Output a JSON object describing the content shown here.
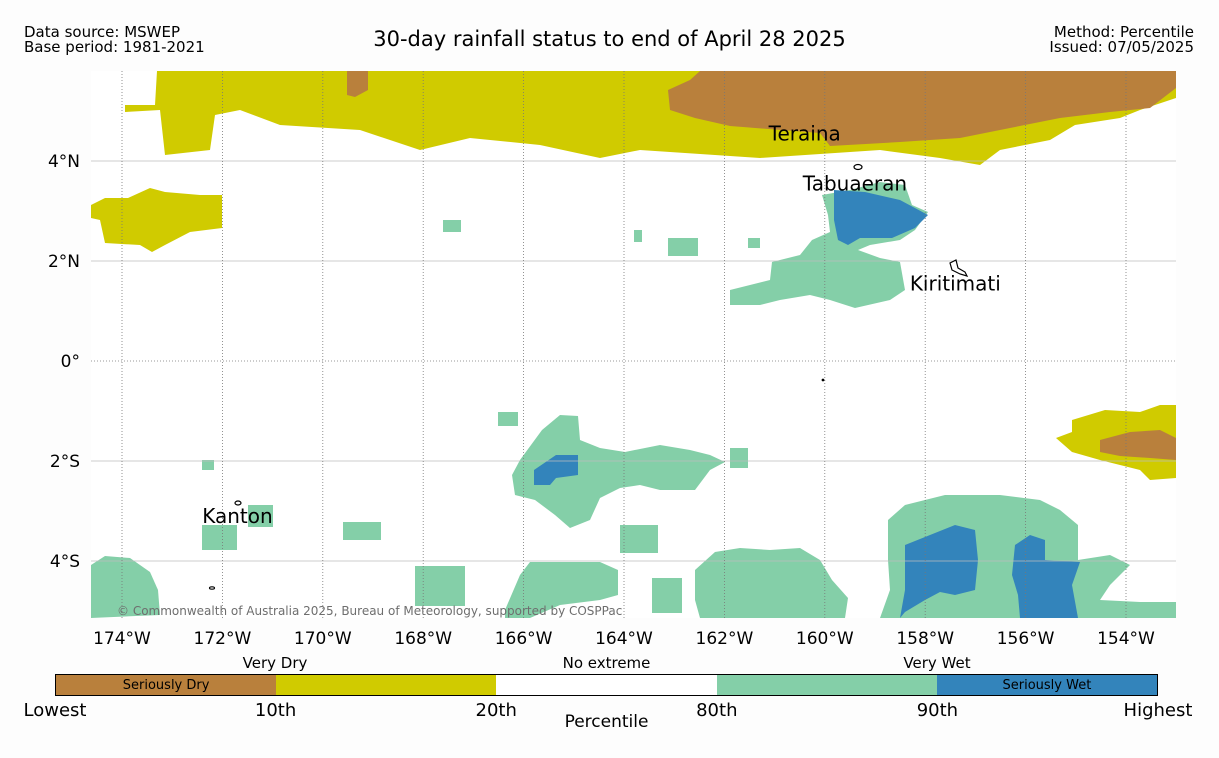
{
  "header": {
    "data_source": "Data source: MSWEP",
    "base_period": "Base period: 1981-2021",
    "title": "30-day rainfall status to end of April 28 2025",
    "method": "Method: Percentile",
    "issued": "Issued: 07/05/2025"
  },
  "map": {
    "lat_labels": [
      "4°N",
      "2°N",
      "0°",
      "2°S",
      "4°S"
    ],
    "lon_labels": [
      "174°W",
      "172°W",
      "170°W",
      "168°W",
      "166°W",
      "164°W",
      "162°W",
      "160°W",
      "158°W",
      "156°W",
      "154°W"
    ],
    "places": [
      {
        "name": "Teraina",
        "lon": -160.4,
        "lat": 4.55
      },
      {
        "name": "Tabuaeran",
        "lon": -159.4,
        "lat": 3.55
      },
      {
        "name": "Kiritimati",
        "lon": -157.4,
        "lat": 1.55
      },
      {
        "name": "Kanton",
        "lon": -171.7,
        "lat": -3.1
      }
    ],
    "credit": "© Commonwealth of Australia 2025, Bureau of Meteorology, supported by COSPPac"
  },
  "legend": {
    "group_labels": [
      "Very Dry",
      "No extreme",
      "Very Wet"
    ],
    "categories": [
      {
        "label": "Seriously Dry",
        "color": "#b9803c"
      },
      {
        "label": "",
        "color": "#d0cb00"
      },
      {
        "label": "",
        "color": "#ffffff"
      },
      {
        "label": "",
        "color": "#84cfa8"
      },
      {
        "label": "Seriously Wet",
        "color": "#3384bb"
      }
    ],
    "tick_labels": [
      "Lowest",
      "10th",
      "20th",
      "80th",
      "90th",
      "Highest"
    ],
    "axis_title": "Percentile"
  },
  "colors": {
    "seriously_dry": "#b9803c",
    "very_dry": "#d0cb00",
    "very_wet": "#84cfa8",
    "seriously_wet": "#3384bb",
    "gridline": "#bdbdbd"
  }
}
